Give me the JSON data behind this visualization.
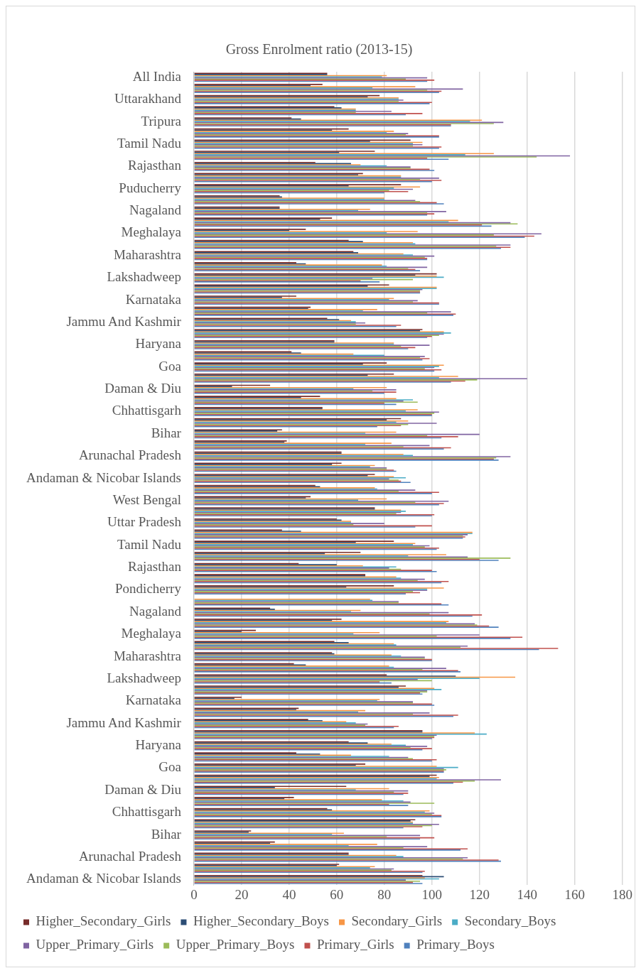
{
  "chart_data": {
    "type": "bar",
    "orientation": "horizontal",
    "title": "Gross Enrolment ratio (2013-15)",
    "categories": [
      "All India",
      null,
      "Uttarakhand",
      null,
      "Tripura",
      null,
      "Tamil Nadu",
      null,
      "Rajasthan",
      null,
      "Puducherry",
      null,
      "Nagaland",
      null,
      "Meghalaya",
      null,
      "Maharashtra",
      null,
      "Lakshadweep",
      null,
      "Karnataka",
      null,
      "Jammu And Kashmir",
      null,
      "Haryana",
      null,
      "Goa",
      null,
      "Daman & Diu",
      null,
      "Chhattisgarh",
      null,
      "Bihar",
      null,
      "Arunachal Pradesh",
      null,
      "Andaman & Nicobar Islands",
      null,
      "West Bengal",
      null,
      "Uttar Pradesh",
      null,
      "Tamil Nadu",
      null,
      "Rajasthan",
      null,
      "Pondicherry",
      null,
      "Nagaland",
      null,
      "Meghalaya",
      null,
      "Maharashtra",
      null,
      "Lakshadweep",
      null,
      "Karnataka",
      null,
      "Jammu And Kashmir",
      null,
      "Haryana",
      null,
      "Goa",
      null,
      "Daman & Diu",
      null,
      "Chhattisgarh",
      null,
      "Bihar",
      null,
      "Arunachal Pradesh",
      null,
      "Andaman & Nicobar Islands"
    ],
    "series": [
      {
        "name": "Higher_Secondary_Girls",
        "color": "#772c2a",
        "values": [
          56,
          54,
          78,
          59,
          41,
          65,
          91,
          76,
          51,
          71,
          87,
          36,
          36,
          58,
          47,
          65,
          67,
          43,
          102,
          82,
          43,
          49,
          56,
          96,
          59,
          41,
          81,
          84,
          32,
          53,
          54,
          87,
          37,
          39,
          62,
          62,
          76,
          51,
          49,
          76,
          60,
          37,
          84,
          70,
          44,
          72,
          84,
          null,
          32,
          62,
          26,
          59,
          58,
          42,
          81,
          89,
          20,
          44,
          48,
          96,
          65,
          43,
          72,
          102,
          64,
          42,
          56,
          93,
          24,
          34,
          65,
          61,
          96
        ]
      },
      {
        "name": "Higher_Secondary_Boys",
        "color": "#2c4d75",
        "values": [
          56,
          49,
          73,
          62,
          45,
          58,
          74,
          61,
          66,
          69,
          65,
          37,
          36,
          53,
          40,
          71,
          69,
          47,
          93,
          73,
          37,
          48,
          61,
          95,
          59,
          45,
          71,
          73,
          16,
          45,
          54,
          81,
          35,
          38,
          62,
          58,
          73,
          53,
          47,
          76,
          62,
          45,
          68,
          55,
          60,
          72,
          64,
          null,
          34,
          58,
          20,
          65,
          59,
          47,
          110,
          86,
          17,
          43,
          54,
          96,
          73,
          53,
          68,
          99,
          34,
          38,
          58,
          91,
          23,
          32,
          65,
          60,
          105
        ]
      },
      {
        "name": "Secondary_Girls",
        "color": "#f79646",
        "values": [
          81,
          93,
          86,
          68,
          121,
          84,
          96,
          126,
          70,
          87,
          95,
          80,
          74,
          111,
          94,
          92,
          88,
          79,
          102,
          102,
          84,
          77,
          66,
          105,
          84,
          67,
          105,
          111,
          81,
          85,
          94,
          90,
          85,
          83,
          88,
          76,
          84,
          76,
          81,
          87,
          66,
          117,
          93,
          106,
          71,
          85,
          105,
          74,
          70,
          107,
          78,
          84,
          83,
          82,
          135,
          101,
          78,
          72,
          64,
          118,
          83,
          66,
          102,
          103,
          82,
          79,
          99,
          92,
          63,
          77,
          85,
          76,
          97
        ]
      },
      {
        "name": "Secondary_Boys",
        "color": "#4bacc6",
        "values": [
          79,
          75,
          86,
          68,
          116,
          81,
          92,
          114,
          81,
          87,
          84,
          80,
          69,
          107,
          81,
          93,
          92,
          81,
          105,
          102,
          82,
          71,
          68,
          108,
          84,
          80,
          103,
          103,
          67,
          92,
          89,
          85,
          72,
          72,
          92,
          74,
          89,
          77,
          69,
          89,
          66,
          117,
          92,
          90,
          85,
          87,
          98,
          75,
          66,
          106,
          67,
          85,
          87,
          84,
          120,
          104,
          77,
          69,
          68,
          123,
          89,
          82,
          111,
          102,
          68,
          88,
          97,
          92,
          58,
          65,
          88,
          74,
          103
        ]
      },
      {
        "name": "Upper_Primary_Girls",
        "color": "#8064a2",
        "values": [
          98,
          113,
          88,
          83,
          130,
          90,
          96,
          158,
          91,
          103,
          92,
          93,
          106,
          133,
          146,
          133,
          101,
          98,
          75,
          96,
          94,
          108,
          72,
          105,
          99,
          97,
          101,
          140,
          85,
          88,
          103,
          102,
          120,
          99,
          133,
          81,
          82,
          93,
          107,
          87,
          80,
          115,
          99,
          115,
          82,
          97,
          98,
          86,
          107,
          118,
          120,
          115,
          97,
          106,
          94,
          98,
          92,
          99,
          73,
          102,
          98,
          90,
          105,
          129,
          90,
          91,
          101,
          103,
          95,
          98,
          115,
          84,
          89
        ]
      },
      {
        "name": "Upper_Primary_Boys",
        "color": "#9bbb59",
        "values": [
          89,
          98,
          86,
          68,
          126,
          89,
          92,
          144,
          91,
          95,
          82,
          95,
          98,
          136,
          126,
          127,
          97,
          90,
          92,
          95,
          92,
          98,
          68,
          103,
          87,
          95,
          97,
          119,
          75,
          94,
          101,
          90,
          98,
          88,
          127,
          81,
          86,
          86,
          93,
          85,
          67,
          113,
          97,
          133,
          87,
          94,
          92,
          86,
          99,
          119,
          102,
          112,
          97,
          96,
          100,
          98,
          92,
          92,
          72,
          101,
          91,
          92,
          106,
          118,
          84,
          101,
          100,
          100,
          81,
          88,
          113,
          83,
          95
        ]
      },
      {
        "name": "Primary_Girls",
        "color": "#c0504d",
        "values": [
          101,
          104,
          100,
          96,
          108,
          103,
          104,
          98,
          99,
          104,
          90,
          102,
          101,
          121,
          143,
          133,
          98,
          93,
          70,
          95,
          103,
          110,
          87,
          100,
          93,
          99,
          104,
          114,
          85,
          80,
          100,
          87,
          111,
          108,
          126,
          84,
          87,
          103,
          105,
          101,
          100,
          114,
          103,
          120,
          100,
          107,
          95,
          104,
          121,
          124,
          138,
          153,
          100,
          111,
          78,
          95,
          100,
          111,
          86,
          101,
          100,
          102,
          105,
          113,
          90,
          82,
          104,
          96,
          101,
          115,
          128,
          97,
          92
        ]
      },
      {
        "name": "Primary_Boys",
        "color": "#4f81bd",
        "values": [
          98,
          103,
          99,
          89,
          108,
          103,
          103,
          107,
          101,
          100,
          80,
          105,
          98,
          125,
          139,
          129,
          98,
          95,
          78,
          95,
          103,
          109,
          85,
          98,
          90,
          96,
          101,
          108,
          80,
          85,
          100,
          77,
          104,
          105,
          128,
          85,
          91,
          100,
          103,
          100,
          93,
          113,
          102,
          128,
          102,
          104,
          89,
          107,
          117,
          128,
          133,
          145,
          100,
          112,
          83,
          96,
          101,
          109,
          84,
          100,
          96,
          100,
          105,
          109,
          88,
          90,
          104,
          88,
          95,
          112,
          129,
          96,
          96
        ]
      }
    ],
    "xlim": [
      0,
      180
    ],
    "xticks": [
      0,
      20,
      40,
      60,
      80,
      100,
      120,
      140,
      160,
      180
    ],
    "grid": "x",
    "legend": "bottom"
  }
}
